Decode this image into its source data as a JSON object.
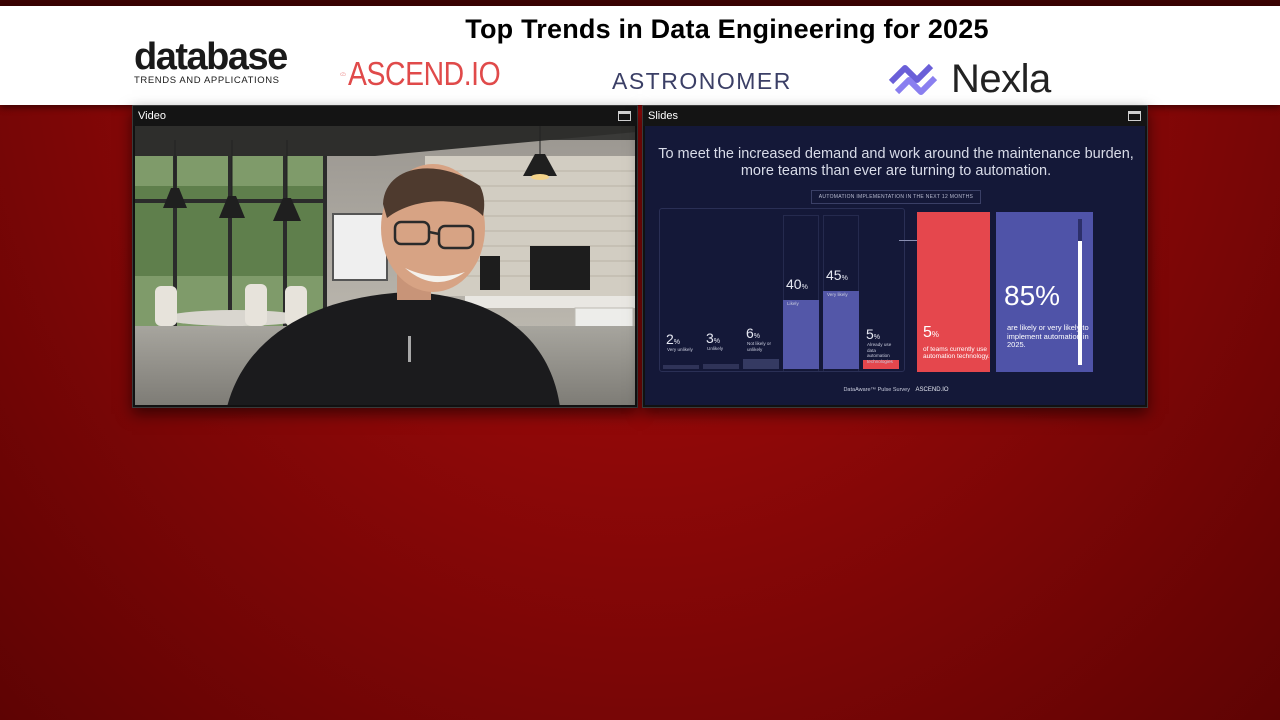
{
  "banner": {
    "title": "Top Trends in Data Engineering for 2025",
    "logos": {
      "database_word": "database",
      "database_sub": "TRENDS AND APPLICATIONS",
      "ascend": "ASCEND.IO",
      "astronomer": "ASTRONOMER",
      "nexla": "Nexla"
    }
  },
  "video_panel": {
    "title": "Video"
  },
  "slides_panel": {
    "title": "Slides",
    "headline": "To meet the increased demand and work around the maintenance burden, more teams than ever are turning to automation.",
    "subtitle": "AUTOMATION IMPLEMENTATION IN THE NEXT 12 MONTHS",
    "footer": "DataAware™ Pulse Survey",
    "footer_logo": "ASCEND.IO",
    "bars": [
      {
        "value": "2",
        "unit": "%",
        "label": "Very unlikely",
        "pct": 2,
        "color": "#2f3358"
      },
      {
        "value": "3",
        "unit": "%",
        "label": "Unlikely",
        "pct": 3,
        "color": "#2f3358"
      },
      {
        "value": "6",
        "unit": "%",
        "label": "Not likely or unlikely",
        "pct": 6,
        "color": "#353a62"
      },
      {
        "value": "40",
        "unit": "%",
        "label": "Likely",
        "pct": 40,
        "color": "#5357a8"
      },
      {
        "value": "45",
        "unit": "%",
        "label": "Very likely",
        "pct": 45,
        "color": "#5357a8"
      },
      {
        "value": "5",
        "unit": "%",
        "label": "Already use data automation technologies",
        "pct": 5,
        "color": "#e5474d"
      }
    ],
    "red_card": {
      "value": "5",
      "unit": "%",
      "text": "of teams currently use automation technology."
    },
    "blue_card": {
      "value": "85%",
      "text": "are likely or very likely to implement automation in 2025.",
      "fill": 0.85
    }
  },
  "colors": {
    "background_red": "#a00a0a",
    "accent_red": "#e5474d",
    "accent_blue": "#4f53a8",
    "slide_bg": "#141838"
  }
}
